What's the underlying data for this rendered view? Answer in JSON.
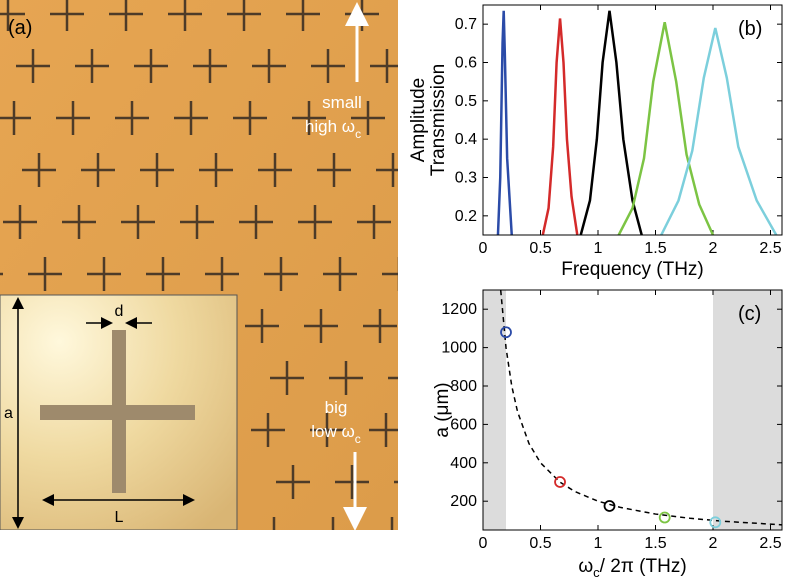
{
  "panel_a": {
    "label": "(a)",
    "top_text": "small",
    "top_text_2": "high ω",
    "top_sub": "c",
    "bottom_text": "big",
    "bottom_text_2": "low ω",
    "bottom_sub": "c",
    "inset_d": "d",
    "inset_a": "a",
    "inset_L": "L"
  },
  "chart_data": [
    {
      "type": "line",
      "label": "(b)",
      "xlabel": "Frequency (THz)",
      "ylabel": [
        "Amplitude",
        "Transmission"
      ],
      "xlim": [
        0,
        2.6
      ],
      "xticks": [
        0,
        0.5,
        1,
        1.5,
        2,
        2.5
      ],
      "ylim": [
        0.15,
        0.75
      ],
      "yticks": [
        0.2,
        0.3,
        0.4,
        0.5,
        0.6,
        0.7
      ],
      "series": [
        {
          "color": "#2b4ba8",
          "x": [
            0.13,
            0.15,
            0.17,
            0.18,
            0.19,
            0.21,
            0.25
          ],
          "values": [
            0.15,
            0.3,
            0.65,
            0.735,
            0.62,
            0.35,
            0.15
          ]
        },
        {
          "color": "#d42a2a",
          "x": [
            0.52,
            0.57,
            0.61,
            0.64,
            0.67,
            0.7,
            0.73,
            0.77,
            0.82
          ],
          "values": [
            0.15,
            0.22,
            0.38,
            0.6,
            0.715,
            0.6,
            0.4,
            0.25,
            0.15
          ]
        },
        {
          "color": "#000000",
          "x": [
            0.85,
            0.93,
            0.99,
            1.04,
            1.1,
            1.16,
            1.22,
            1.3,
            1.38
          ],
          "values": [
            0.15,
            0.24,
            0.4,
            0.6,
            0.735,
            0.6,
            0.4,
            0.24,
            0.15
          ]
        },
        {
          "color": "#7cc444",
          "x": [
            1.18,
            1.3,
            1.4,
            1.48,
            1.58,
            1.68,
            1.77,
            1.88,
            2.0
          ],
          "values": [
            0.15,
            0.22,
            0.35,
            0.55,
            0.705,
            0.55,
            0.36,
            0.23,
            0.15
          ]
        },
        {
          "color": "#7ccfdc",
          "x": [
            1.55,
            1.7,
            1.82,
            1.92,
            2.02,
            2.12,
            2.22,
            2.38,
            2.55
          ],
          "values": [
            0.15,
            0.24,
            0.37,
            0.56,
            0.69,
            0.56,
            0.38,
            0.24,
            0.15
          ]
        }
      ]
    },
    {
      "type": "scatter",
      "label": "(c)",
      "xlabel": "ω",
      "xlabel_sub": "c",
      "xlabel_rest": "/ 2π (THz)",
      "ylabel": "a (μm)",
      "xlim": [
        0,
        2.6
      ],
      "xticks": [
        0,
        0.5,
        1,
        1.5,
        2,
        2.5
      ],
      "ylim": [
        50,
        1300
      ],
      "yticks": [
        200,
        400,
        600,
        800,
        1000,
        1200
      ],
      "shaded": [
        [
          0,
          0.2
        ],
        [
          2,
          2.6
        ]
      ],
      "shade_color": "#dcdcdc",
      "points": {
        "x": [
          0.2,
          0.67,
          1.1,
          1.58,
          2.02
        ],
        "values": [
          1080,
          300,
          175,
          115,
          90
        ],
        "colors": [
          "#2b4ba8",
          "#d42a2a",
          "#000000",
          "#7cc444",
          "#7ccfdc"
        ]
      },
      "fit": {
        "color": "#000000",
        "x": [
          0.154,
          0.2,
          0.25,
          0.3,
          0.4,
          0.5,
          0.67,
          0.8,
          1,
          1.2,
          1.5,
          1.8,
          2.1,
          2.6
        ],
        "values": [
          1299,
          1000,
          800,
          667,
          500,
          400,
          299,
          250,
          200,
          167,
          133,
          111,
          95,
          77
        ]
      }
    }
  ]
}
